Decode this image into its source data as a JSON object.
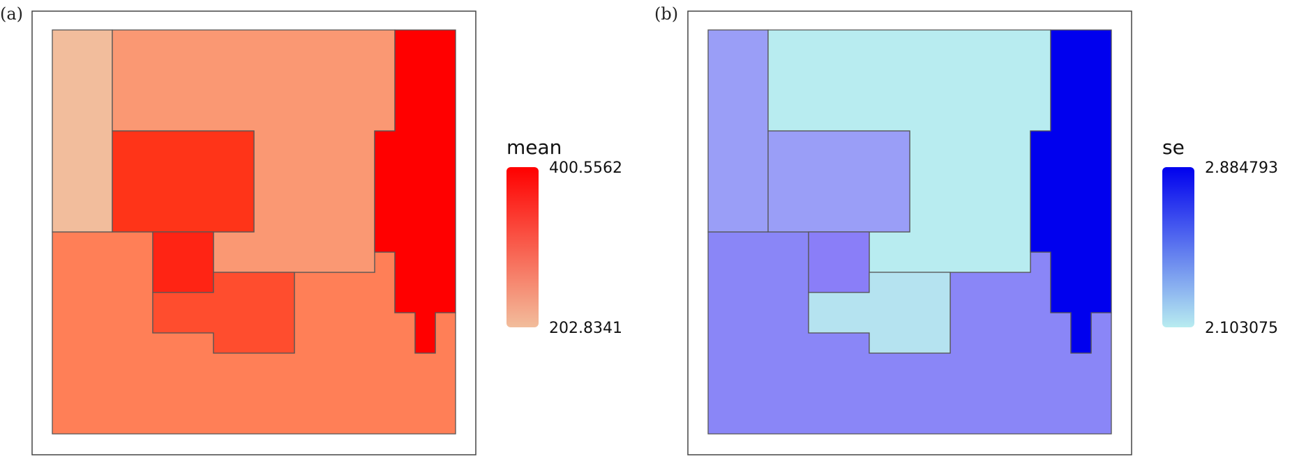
{
  "figure": {
    "panels": [
      {
        "tag": "(a)",
        "legend_title": "mean",
        "legend_max": "400.5562",
        "legend_min": "202.8341",
        "color_low": "#f2bd9c",
        "color_high": "#ff0000",
        "region_colors": {
          "west_strip": "#f2bd9c",
          "north": "#fa9873",
          "center_block": "#ff3418",
          "east_corridor": "#ff0000",
          "south": "#ff7f57",
          "small_block": "#ff2414",
          "south_center": "#ff4d2e"
        }
      },
      {
        "tag": "(b)",
        "legend_title": "se",
        "legend_max": "2.884793",
        "legend_min": "2.103075",
        "color_low": "#b8ecf0",
        "color_high": "#0000ee",
        "region_colors": {
          "west_strip": "#9a9ef7",
          "north": "#b8ecf0",
          "center_block": "#9a9ef7",
          "east_corridor": "#0000ee",
          "south": "#8a86f7",
          "small_block": "#8a7ef8",
          "south_center": "#b5e3f0"
        }
      }
    ]
  }
}
